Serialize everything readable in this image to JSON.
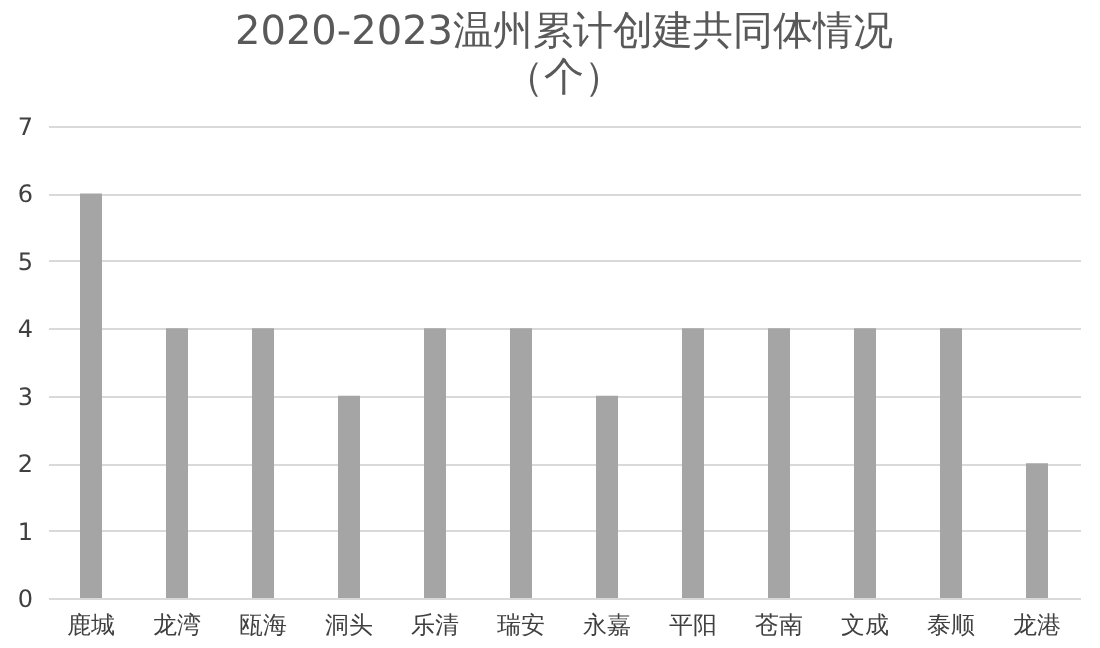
{
  "chart_data": {
    "type": "bar",
    "title": "2020-2023温州累计创建共同体情况",
    "subtitle": "（个）",
    "categories": [
      "鹿城",
      "龙湾",
      "瓯海",
      "洞头",
      "乐清",
      "瑞安",
      "永嘉",
      "平阳",
      "苍南",
      "文成",
      "泰顺",
      "龙港"
    ],
    "values": [
      6,
      4,
      4,
      3,
      4,
      4,
      3,
      4,
      4,
      4,
      4,
      2
    ],
    "color": "#a5a5a5",
    "ylim": [
      0,
      7
    ],
    "yticks": [
      0,
      1,
      2,
      3,
      4,
      5,
      6,
      7
    ],
    "grid": "y"
  }
}
